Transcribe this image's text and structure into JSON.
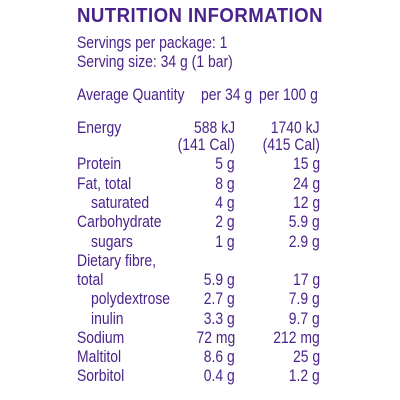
{
  "title": "NUTRITION INFORMATION",
  "servings_line": "Servings per package: 1",
  "serving_size_line": "Serving size: 34 g (1 bar)",
  "header": {
    "label": "Average Quantity",
    "col1": "per 34 g",
    "col2": "per 100 g"
  },
  "rows": [
    {
      "name": "Energy",
      "v1": "588 kJ",
      "v2": "1740 kJ"
    },
    {
      "name": "",
      "v1": "(141 Cal)",
      "v2": "(415 Cal)"
    },
    {
      "name": "Protein",
      "v1": "5 g",
      "v2": "15 g"
    },
    {
      "name": "Fat, total",
      "v1": "8 g",
      "v2": "24 g"
    },
    {
      "name": "saturated",
      "v1": "4 g",
      "v2": "12 g"
    },
    {
      "name": "Carbohydrate",
      "v1": "2 g",
      "v2": "5.9 g"
    },
    {
      "name": "sugars",
      "v1": "1 g",
      "v2": "2.9 g"
    },
    {
      "name": "Dietary fibre,",
      "v1": "",
      "v2": ""
    },
    {
      "name": "total",
      "v1": "5.9 g",
      "v2": "17 g"
    },
    {
      "name": "polydextrose",
      "v1": "2.7 g",
      "v2": "7.9 g"
    },
    {
      "name": "inulin",
      "v1": "3.3 g",
      "v2": "9.7 g"
    },
    {
      "name": "Sodium",
      "v1": "72 mg",
      "v2": "212 mg"
    },
    {
      "name": "Maltitol",
      "v1": "8.6 g",
      "v2": "25 g"
    },
    {
      "name": "Sorbitol",
      "v1": "0.4 g",
      "v2": "1.2 g"
    }
  ],
  "colors": {
    "text": "#4a238a",
    "background": "#ffffff"
  }
}
